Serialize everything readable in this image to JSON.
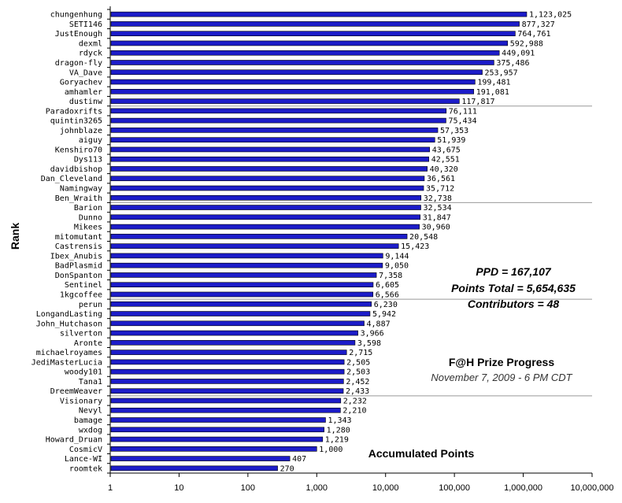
{
  "chart_data": {
    "type": "bar",
    "orientation": "horizontal",
    "xscale": "log",
    "xlim": [
      1,
      10000000
    ],
    "xticks": [
      "1",
      "10",
      "100",
      "1,000",
      "10,000",
      "100,000",
      "1,000,000",
      "10,000,000"
    ],
    "ylabel": "Rank",
    "xlabel": "Accumulated Points",
    "title": "F@H Prize Progress",
    "subtitle": "November 7, 2009 - 6 PM CDT",
    "annotations": [
      "PPD = 167,107",
      "Points Total = 5,654,635",
      "Contributors = 48"
    ],
    "bar_color": "#1c1cc8",
    "categories": [
      "chungenhung",
      "SETI146",
      "JustEnough",
      "dexml",
      "rdyck",
      "dragon-fly",
      "VA_Dave",
      "Goryachev",
      "amhamler",
      "dustinw",
      "Paradoxrifts",
      "quintin3265",
      "johnblaze",
      "aiguy",
      "Kenshiro70",
      "Dys113",
      "davidbishop",
      "Dan_Cleveland",
      "Namingway",
      "Ben_Wraith",
      "Barion",
      "Dunno",
      "Mikees",
      "mitomutant",
      "Castrensis",
      "Ibex_Anubis",
      "BadPlasmid",
      "DonSpanton",
      "Sentinel",
      "1kgcoffee",
      "perun",
      "LongandLasting",
      "John_Hutchason",
      "silverton",
      "Aronte",
      "michaelroyames",
      "JediMasterLucia",
      "woody101",
      "Tana1",
      "DreemWeaver",
      "Visionary",
      "Nevyl",
      "bamage",
      "wxdog",
      "Howard_Druan",
      "CosmicV",
      "Lance-WI",
      "roomtek"
    ],
    "values": [
      1123025,
      877327,
      764761,
      592988,
      449091,
      375486,
      253957,
      199481,
      191081,
      117817,
      76111,
      75434,
      57353,
      51939,
      43675,
      42551,
      40320,
      36561,
      35712,
      32738,
      32534,
      31847,
      30960,
      20548,
      15423,
      9144,
      9050,
      7358,
      6605,
      6566,
      6230,
      5942,
      4887,
      3966,
      3598,
      2715,
      2505,
      2503,
      2452,
      2433,
      2232,
      2210,
      1343,
      1280,
      1219,
      1000,
      407,
      270
    ],
    "value_labels": [
      "1,123,025",
      "877,327",
      "764,761",
      "592,988",
      "449,091",
      "375,486",
      "253,957",
      "199,481",
      "191,081",
      "117,817",
      "76,111",
      "75,434",
      "57,353",
      "51,939",
      "43,675",
      "42,551",
      "40,320",
      "36,561",
      "35,712",
      "32,738",
      "32,534",
      "31,847",
      "30,960",
      "20,548",
      "15,423",
      "9,144",
      "9,050",
      "7,358",
      "6,605",
      "6,566",
      "6,230",
      "5,942",
      "4,887",
      "3,966",
      "3,598",
      "2,715",
      "2,505",
      "2,503",
      "2,452",
      "2,433",
      "2,232",
      "2,210",
      "1,343",
      "1,280",
      "1,219",
      "1,000",
      "407",
      "270"
    ],
    "grid": "horizontal every 10 ranks",
    "legend": "none"
  }
}
